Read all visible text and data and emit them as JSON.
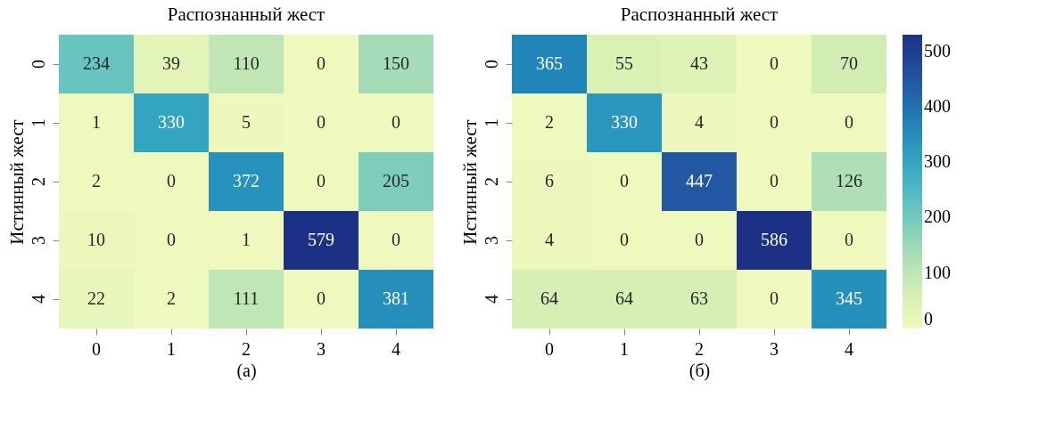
{
  "chart_data": [
    {
      "type": "heatmap",
      "xlabel": "Распознанный жест",
      "ylabel": "Истинный жест",
      "annotations": [
        "(а)"
      ],
      "data_labels": true,
      "categories": [
        "0",
        "1",
        "2",
        "3",
        "4"
      ],
      "y_categories": [
        "0",
        "1",
        "2",
        "3",
        "4"
      ],
      "cells": [
        [
          234,
          39,
          110,
          0,
          150
        ],
        [
          1,
          330,
          5,
          0,
          0
        ],
        [
          2,
          0,
          372,
          0,
          205
        ],
        [
          10,
          0,
          1,
          579,
          0
        ],
        [
          22,
          2,
          111,
          0,
          381
        ]
      ]
    },
    {
      "type": "heatmap",
      "xlabel": "Распознанный жест",
      "ylabel": "Истинный жест",
      "annotations": [
        "(б)"
      ],
      "data_labels": true,
      "categories": [
        "0",
        "1",
        "2",
        "3",
        "4"
      ],
      "y_categories": [
        "0",
        "1",
        "2",
        "3",
        "4"
      ],
      "cells": [
        [
          365,
          55,
          43,
          0,
          70
        ],
        [
          2,
          330,
          4,
          0,
          0
        ],
        [
          6,
          0,
          447,
          0,
          126
        ],
        [
          4,
          0,
          0,
          586,
          0
        ],
        [
          64,
          64,
          63,
          0,
          345
        ]
      ],
      "clim": [
        0,
        530
      ],
      "cticks": [
        0,
        100,
        200,
        300,
        400,
        500
      ]
    }
  ]
}
